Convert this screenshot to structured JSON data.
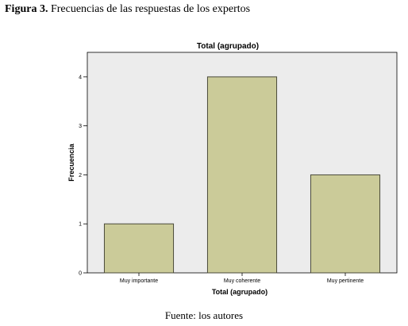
{
  "figure": {
    "label": "Figura 3.",
    "caption": "Frecuencias de las respuestas de los expertos",
    "source": "Fuente: los autores"
  },
  "chart_data": {
    "type": "bar",
    "title": "Total  (agrupado)",
    "xlabel": "Total  (agrupado)",
    "ylabel": "Frecuencia",
    "categories": [
      "Muy importante",
      "Muy coherente",
      "Muy pertinente"
    ],
    "values": [
      1,
      4,
      2
    ],
    "ylim": [
      0,
      4.5
    ],
    "yticks": [
      "0",
      "1",
      "2",
      "3",
      "4"
    ],
    "grid": false,
    "legend": "none",
    "colors": {
      "plot_background": "#ececec",
      "bar_fill": "#cbcb99",
      "bar_stroke": "#4a4a3a"
    }
  }
}
